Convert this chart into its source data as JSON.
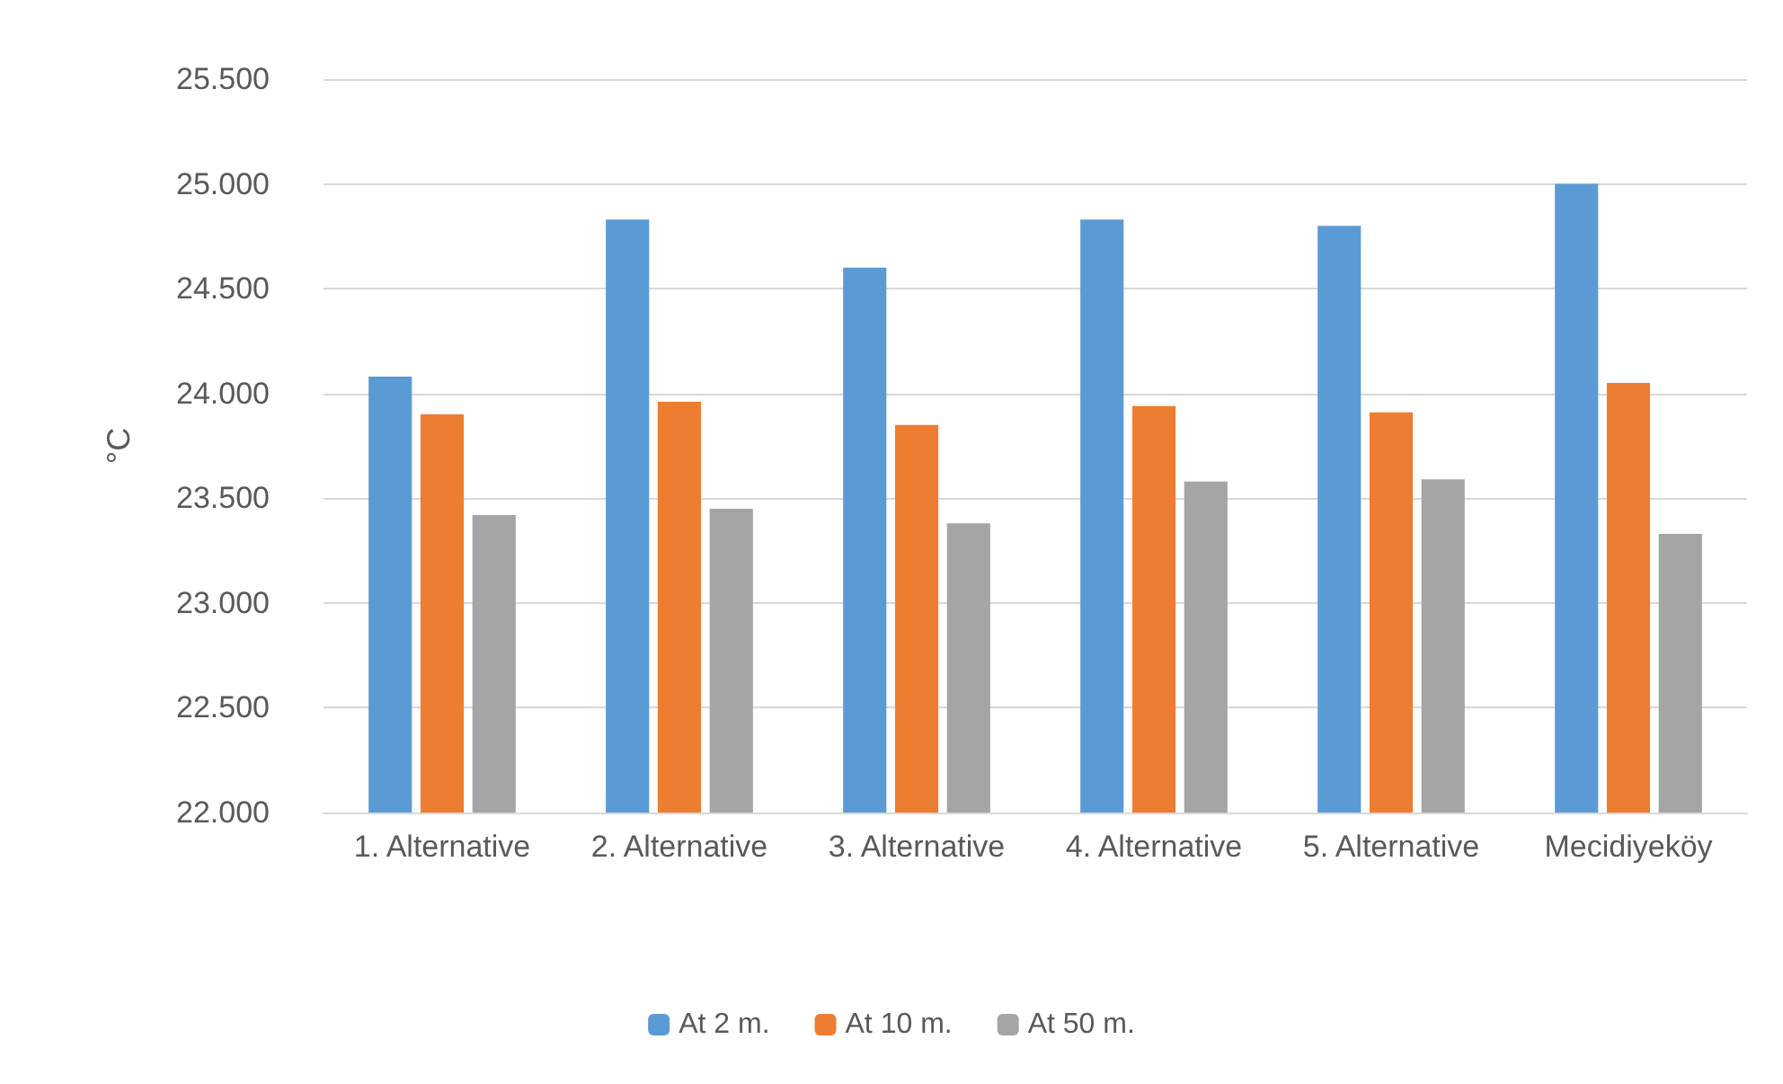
{
  "chart_data": {
    "type": "bar",
    "ylabel": "°C",
    "categories": [
      "1. Alternative",
      "2. Alternative",
      "3. Alternative",
      "4. Alternative",
      "5. Alternative",
      "Mecidiyeköy"
    ],
    "series": [
      {
        "name": "At 2 m.",
        "color": "#5b9bd5",
        "values": [
          24.08,
          24.83,
          24.6,
          24.83,
          24.8,
          25.0
        ]
      },
      {
        "name": "At 10 m.",
        "color": "#ed7d31",
        "values": [
          23.9,
          23.96,
          23.85,
          23.94,
          23.91,
          24.05
        ]
      },
      {
        "name": "At 50 m.",
        "color": "#a5a5a5",
        "values": [
          23.42,
          23.45,
          23.38,
          23.58,
          23.59,
          23.33
        ]
      }
    ],
    "ylim": [
      22,
      25.5
    ],
    "yticks": [
      {
        "value": 22,
        "label": "22.000"
      },
      {
        "value": 22.5,
        "label": "22.500"
      },
      {
        "value": 23,
        "label": "23.000"
      },
      {
        "value": 23.5,
        "label": "23.500"
      },
      {
        "value": 24,
        "label": "24.000"
      },
      {
        "value": 24.5,
        "label": "24.500"
      },
      {
        "value": 25,
        "label": "25.000"
      },
      {
        "value": 25.5,
        "label": "25.500"
      }
    ],
    "grid": "y",
    "legend": "bottom"
  }
}
